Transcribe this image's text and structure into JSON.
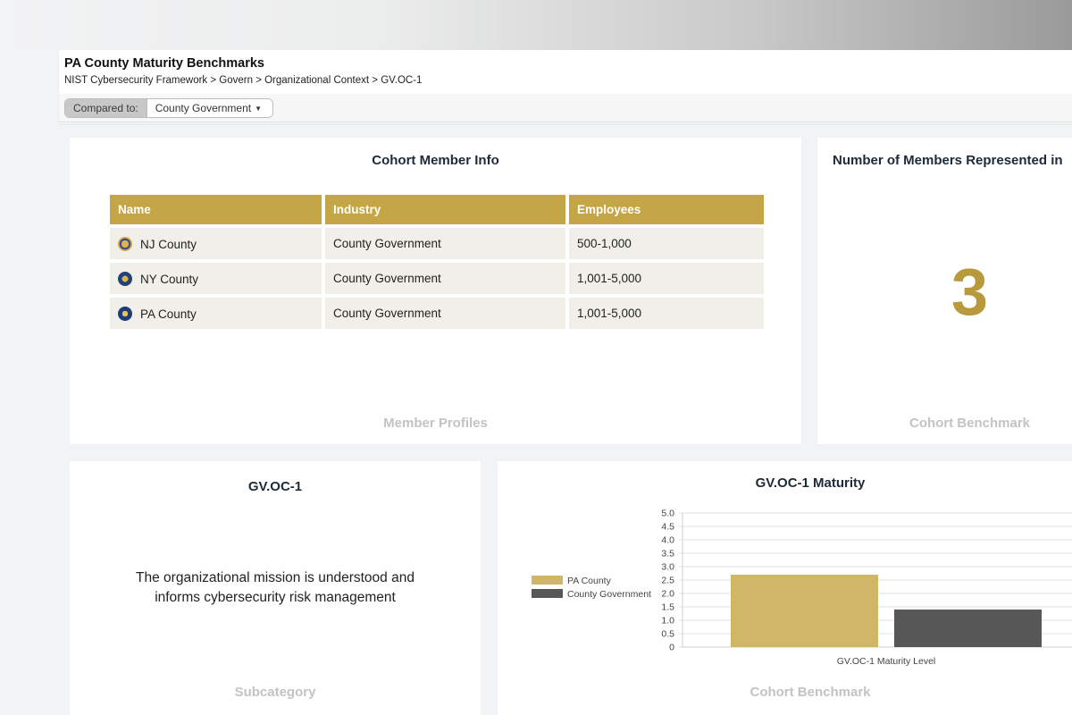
{
  "header": {
    "title": "PA County Maturity Benchmarks",
    "breadcrumb": "NIST Cybersecurity Framework > Govern > Organizational Context > GV.OC-1",
    "compare_label": "Compared to:",
    "compare_value": "County Government"
  },
  "cohort_card": {
    "title": "Cohort Member Info",
    "footer": "Member Profiles",
    "columns": [
      "Name",
      "Industry",
      "Employees"
    ],
    "rows": [
      {
        "name": "NJ County",
        "industry": "County Government",
        "employees": "500-1,000",
        "seal_icon": "nj-seal-icon"
      },
      {
        "name": "NY County",
        "industry": "County Government",
        "employees": "1,001-5,000",
        "seal_icon": "ny-seal-icon"
      },
      {
        "name": "PA County",
        "industry": "County Government",
        "employees": "1,001-5,000",
        "seal_icon": "pa-seal-icon"
      }
    ]
  },
  "members_card": {
    "title": "Number of Members Represented in",
    "count": "3",
    "footer": "Cohort Benchmark"
  },
  "subcategory_card": {
    "title": "GV.OC-1",
    "line1": "The organizational mission is understood and",
    "line2": "informs cybersecurity risk management",
    "footer": "Subcategory"
  },
  "maturity_card": {
    "title": "GV.OC-1 Maturity",
    "footer": "Cohort Benchmark"
  },
  "colors": {
    "accent_gold": "#c5a646",
    "pa_series": "#cfb767",
    "county_series": "#575757"
  },
  "chart_data": {
    "type": "bar",
    "categories": [
      "GV.OC-1 Maturity Level"
    ],
    "series": [
      {
        "name": "PA County",
        "values": [
          2.7
        ]
      },
      {
        "name": "County Government",
        "values": [
          1.4
        ]
      }
    ],
    "ylim": [
      0,
      5
    ],
    "yticks": [
      "0",
      "0.5",
      "1.0",
      "1.5",
      "2.0",
      "2.5",
      "3.0",
      "3.5",
      "4.0",
      "4.5",
      "5.0"
    ],
    "xlabel": "GV.OC-1 Maturity Level",
    "grid": true,
    "legend": "left"
  }
}
